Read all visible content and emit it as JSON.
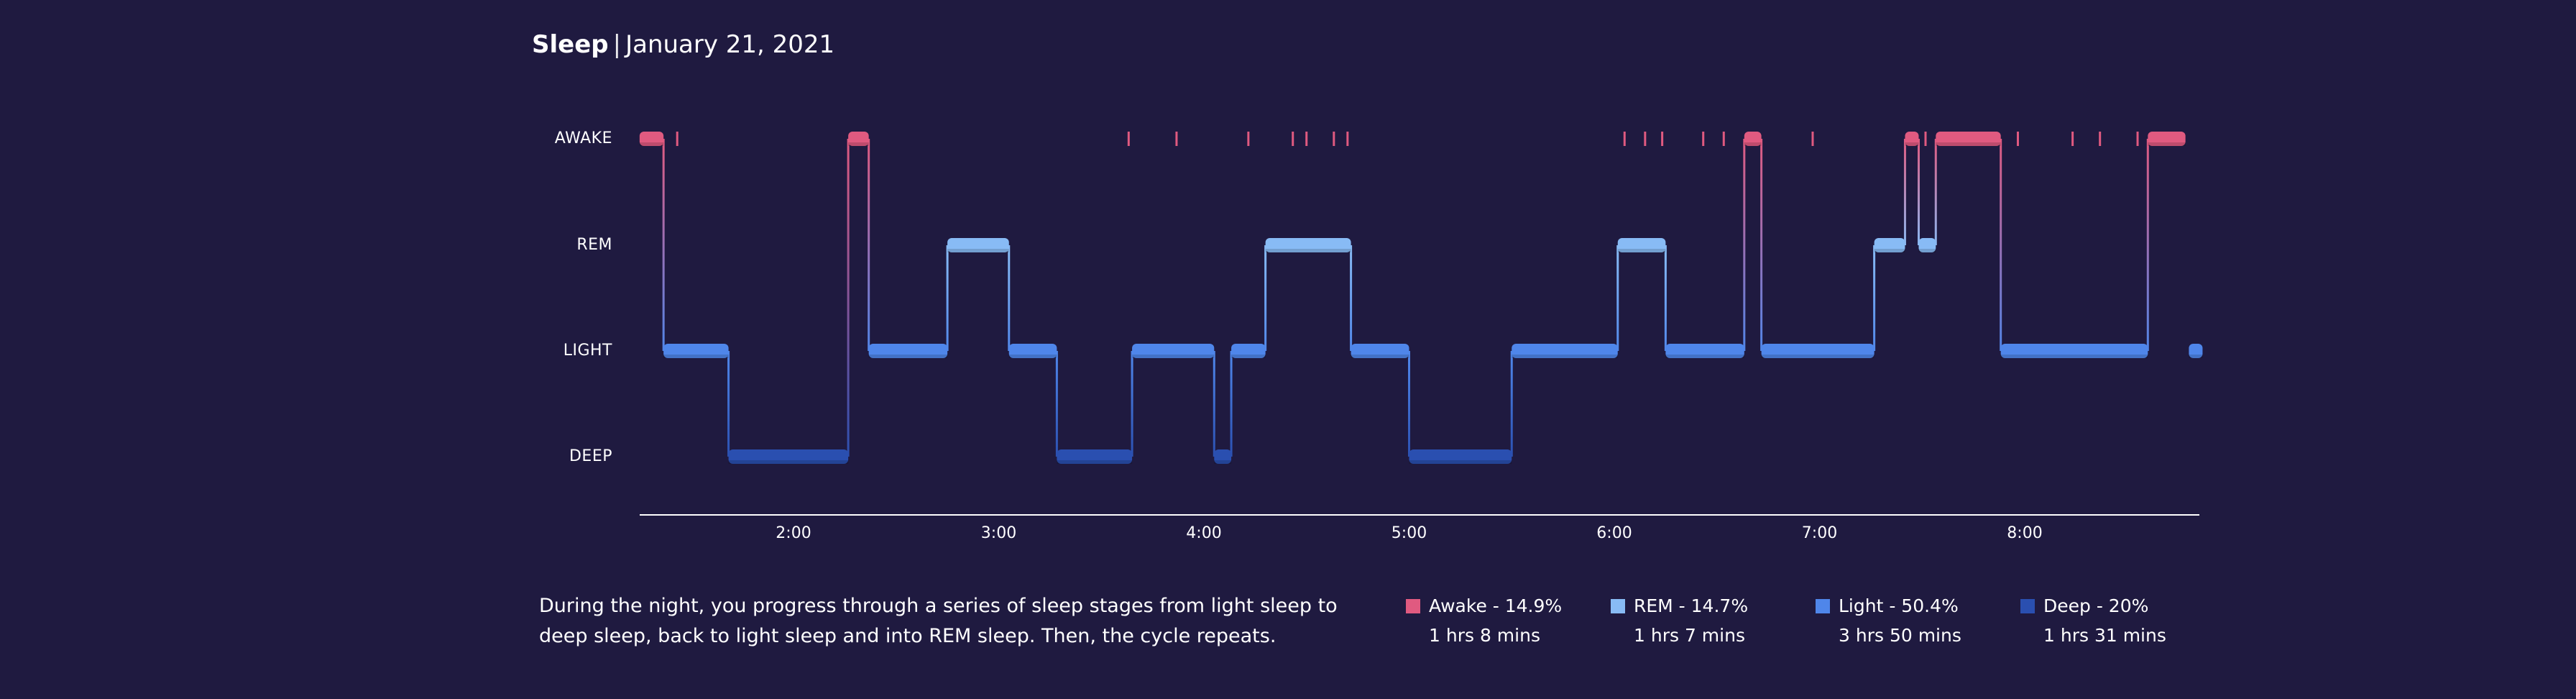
{
  "header": {
    "title": "Sleep",
    "separator": "|",
    "date": "January 21, 2021"
  },
  "colors": {
    "background": "#1f1a40",
    "awake": "#e05a80",
    "rem": "#88bbf5",
    "light": "#4f86ea",
    "deep": "#2a4fb0"
  },
  "description": "During the night, you progress through a series of sleep stages from light sleep to deep sleep, back to light sleep and into REM sleep. Then, the cycle repeats.",
  "legend": [
    {
      "stage": "awake",
      "label": "Awake - 14.9%",
      "duration": "1 hrs 8 mins"
    },
    {
      "stage": "rem",
      "label": "REM - 14.7%",
      "duration": "1 hrs 7 mins"
    },
    {
      "stage": "light",
      "label": "Light - 50.4%",
      "duration": "3 hrs 50 mins"
    },
    {
      "stage": "deep",
      "label": "Deep - 20%",
      "duration": "1 hrs 31 mins"
    }
  ],
  "chart_data": {
    "type": "hypnogram",
    "stages": [
      "AWAKE",
      "REM",
      "LIGHT",
      "DEEP"
    ],
    "x_ticks": [
      "2:00",
      "3:00",
      "4:00",
      "5:00",
      "6:00",
      "7:00",
      "8:00"
    ],
    "x_range": [
      "1:15",
      "8:52"
    ],
    "segments": [
      {
        "stage": "AWAKE",
        "start": "1:15",
        "end": "1:22"
      },
      {
        "stage": "LIGHT",
        "start": "1:22",
        "end": "1:41"
      },
      {
        "stage": "DEEP",
        "start": "1:41",
        "end": "2:16"
      },
      {
        "stage": "AWAKE",
        "start": "2:16",
        "end": "2:22"
      },
      {
        "stage": "LIGHT",
        "start": "2:22",
        "end": "2:45"
      },
      {
        "stage": "REM",
        "start": "2:45",
        "end": "3:03"
      },
      {
        "stage": "LIGHT",
        "start": "3:03",
        "end": "3:17"
      },
      {
        "stage": "DEEP",
        "start": "3:17",
        "end": "3:39"
      },
      {
        "stage": "LIGHT",
        "start": "3:39",
        "end": "4:03"
      },
      {
        "stage": "DEEP",
        "start": "4:03",
        "end": "4:08"
      },
      {
        "stage": "LIGHT",
        "start": "4:08",
        "end": "4:18"
      },
      {
        "stage": "REM",
        "start": "4:18",
        "end": "4:43"
      },
      {
        "stage": "LIGHT",
        "start": "4:43",
        "end": "5:00"
      },
      {
        "stage": "DEEP",
        "start": "5:00",
        "end": "5:30"
      },
      {
        "stage": "LIGHT",
        "start": "5:30",
        "end": "6:01"
      },
      {
        "stage": "REM",
        "start": "6:01",
        "end": "6:15"
      },
      {
        "stage": "LIGHT",
        "start": "6:15",
        "end": "6:38"
      },
      {
        "stage": "AWAKE",
        "start": "6:38",
        "end": "6:43"
      },
      {
        "stage": "LIGHT",
        "start": "6:43",
        "end": "7:16"
      },
      {
        "stage": "REM",
        "start": "7:16",
        "end": "7:25"
      },
      {
        "stage": "AWAKE",
        "start": "7:25",
        "end": "7:29"
      },
      {
        "stage": "REM",
        "start": "7:29",
        "end": "7:34"
      },
      {
        "stage": "AWAKE",
        "start": "7:34",
        "end": "7:53"
      },
      {
        "stage": "LIGHT",
        "start": "7:53",
        "end": "8:36"
      },
      {
        "stage": "AWAKE",
        "start": "8:36",
        "end": "8:47"
      },
      {
        "stage": "LIGHT",
        "start": "8:48",
        "end": "8:52"
      }
    ],
    "awake_blips": [
      "1:26",
      "3:38",
      "3:52",
      "4:13",
      "4:26",
      "4:30",
      "4:38",
      "4:42",
      "6:03",
      "6:09",
      "6:14",
      "6:26",
      "6:32",
      "6:58",
      "7:31",
      "7:58",
      "8:14",
      "8:22",
      "8:33"
    ]
  }
}
